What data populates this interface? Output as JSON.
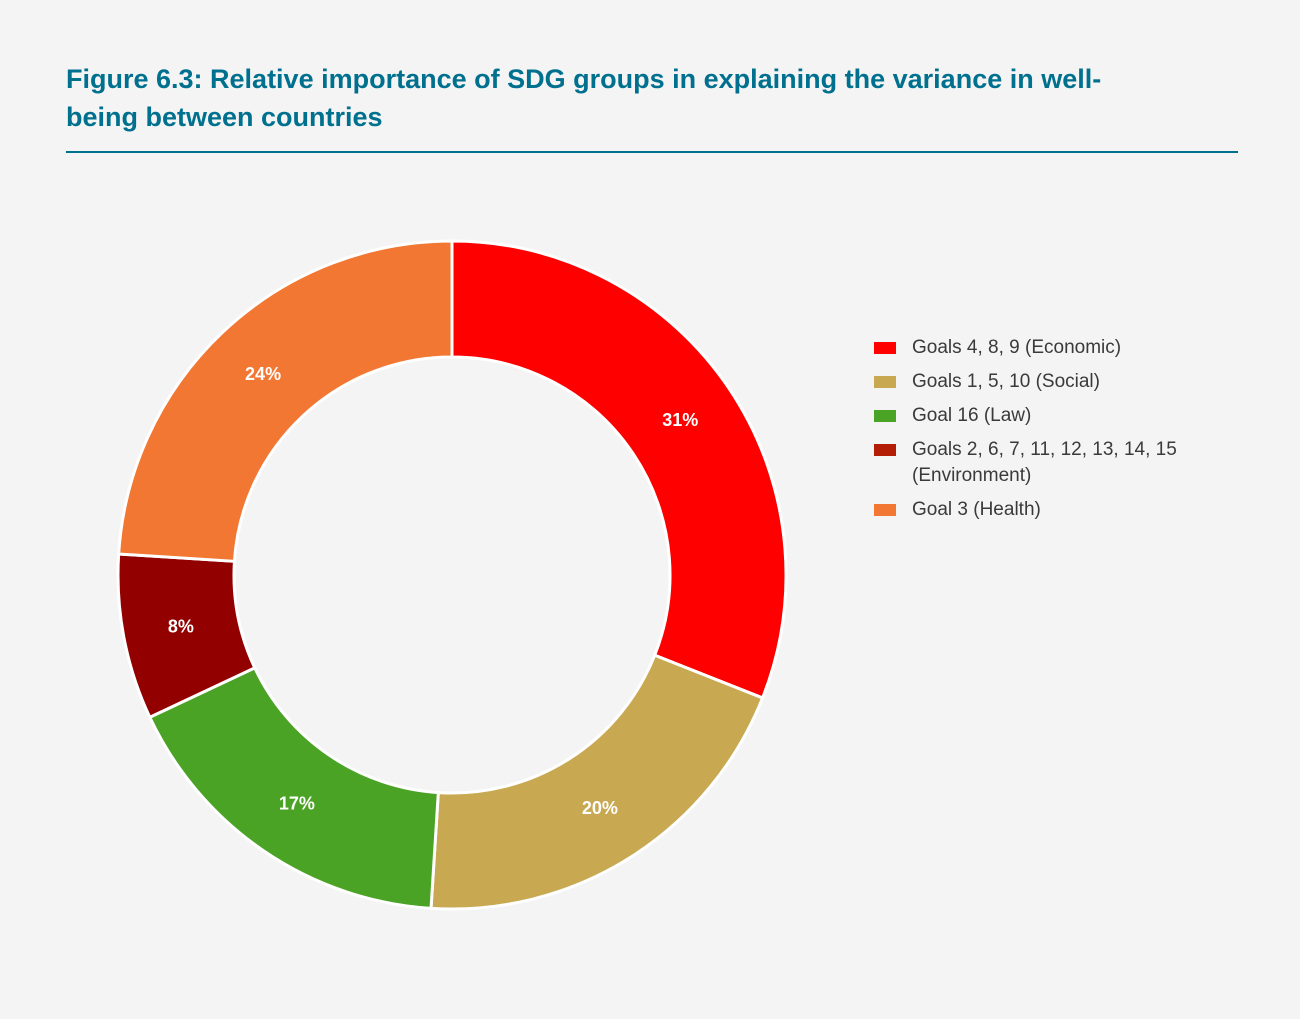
{
  "figure": {
    "title": "Figure 6.3: Relative importance of SDG groups in explaining the variance in well-being between countries"
  },
  "chart_data": {
    "type": "pie",
    "variant": "donut",
    "title": "",
    "categories": [
      "Goals 4, 8, 9 (Economic)",
      "Goals 1, 5, 10 (Social)",
      "Goal 16 (Law)",
      "Goals 2, 6, 7, 11, 12, 13, 14, 15 (Environment)",
      "Goal 3 (Health)"
    ],
    "values": [
      31,
      20,
      17,
      8,
      24
    ],
    "data_labels": [
      "31%",
      "20%",
      "17%",
      "8%",
      "24%"
    ],
    "slice_colors": [
      "#ff0000",
      "#c9a852",
      "#4ba326",
      "#920000",
      "#f27733"
    ],
    "legend": {
      "position": "right",
      "entries": [
        {
          "label": "Goals 4, 8, 9 (Economic)",
          "color": "#ff0000"
        },
        {
          "label": "Goals 1, 5, 10 (Social)",
          "color": "#c9a852"
        },
        {
          "label": "Goal 16 (Law)",
          "color": "#4ba326"
        },
        {
          "label": "Goals 2, 6, 7, 11, 12, 13, 14, 15 (Environment)",
          "color": "#b31d05"
        },
        {
          "label": "Goal 3 (Health)",
          "color": "#f27733"
        }
      ]
    },
    "start_angle": "top",
    "direction": "clockwise"
  },
  "colors": {
    "title": "#00708f",
    "background": "#f4f4f4",
    "slice_border": "#ffffff"
  }
}
